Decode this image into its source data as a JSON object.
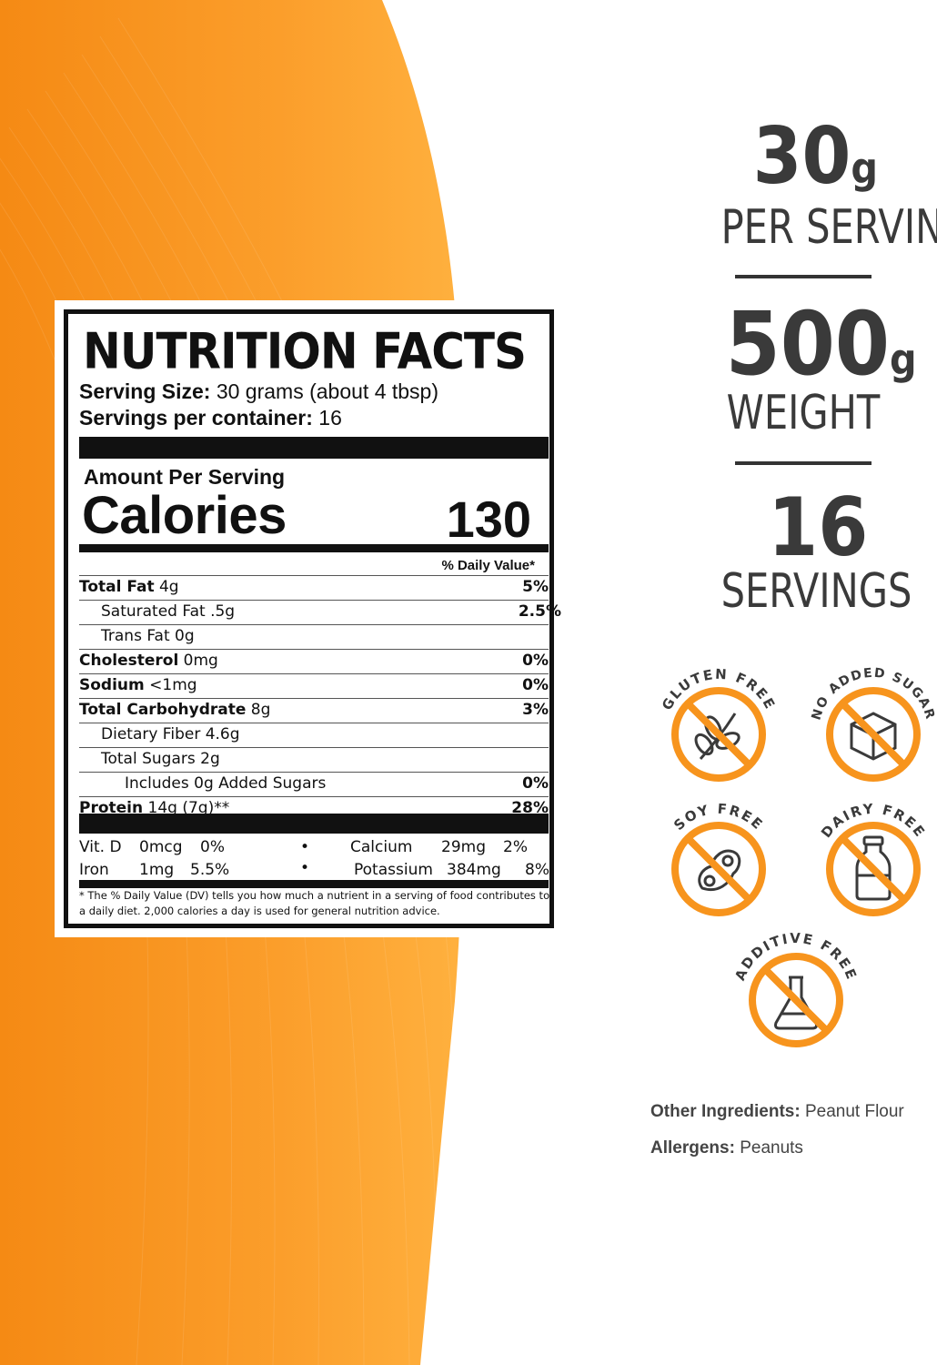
{
  "colors": {
    "orange": "#f7941d",
    "orange_light": "#ffb347",
    "dark": "#3a3a3a"
  },
  "label": {
    "title": "NUTRITION FACTS",
    "serving_size_label": "Serving Size:",
    "serving_size_value": " 30 grams (about 4 tbsp)",
    "servings_label": "Servings per container:",
    "servings_value": " 16",
    "amount_per_serving": "Amount Per Serving",
    "calories_label": "Calories",
    "calories_value": "130",
    "dv_header": "% Daily Value*",
    "rows": [
      {
        "name": "Total Fat",
        "amount": " 4g",
        "pct": "5%"
      },
      {
        "name": "Saturated Fat .5g",
        "pct": "2.5%"
      },
      {
        "name": "Trans Fat 0g",
        "pct": ""
      },
      {
        "name": "Cholesterol",
        "amount": " 0mg",
        "pct": "0%"
      },
      {
        "name": "Sodium",
        "amount": " <1mg",
        "pct": "0%"
      },
      {
        "name": "Total Carbohydrate",
        "amount": " 8g",
        "pct": "3%"
      },
      {
        "name": "Dietary Fiber  4.6g",
        "pct": ""
      },
      {
        "name": "Total Sugars  2g",
        "pct": ""
      },
      {
        "name": "Includes 0g Added Sugars",
        "pct": "0%"
      },
      {
        "name": "Protein",
        "amount": " 14g (7g)**",
        "pct": "28%"
      }
    ],
    "vitamins": {
      "vitd_name": "Vit. D",
      "vitd_amt": "0mcg",
      "vitd_pct": "0%",
      "calcium_name": "Calcium",
      "calcium_amt": "29mg",
      "calcium_pct": "2%",
      "iron_name": "Iron",
      "iron_amt": "1mg",
      "iron_pct": "5.5%",
      "potassium_name": "Potassium",
      "potassium_amt": "384mg",
      "potassium_pct": "8%",
      "bullet": "•"
    },
    "footnote": "* The % Daily Value (DV) tells you how much a nutrient in a serving of food contributes to a daily diet. 2,000 calories a day is used for general nutrition advice."
  },
  "stats": [
    {
      "big": "30",
      "unit": "g",
      "label": "PER SERVING"
    },
    {
      "big": "500",
      "unit": "g",
      "label": "WEIGHT"
    },
    {
      "big": "16",
      "unit": "",
      "label": "SERVINGS"
    }
  ],
  "badges": [
    {
      "text": "GLUTEN FREE",
      "icon": "wheat-icon"
    },
    {
      "text": "NO ADDED SUGAR",
      "icon": "sugar-cube-icon"
    },
    {
      "text": "SOY FREE",
      "icon": "soybean-icon"
    },
    {
      "text": "DAIRY FREE",
      "icon": "milk-bottle-icon"
    },
    {
      "text": "ADDITIVE FREE",
      "icon": "flask-icon"
    }
  ],
  "ingredients": {
    "other_label": "Other Ingredients:",
    "other_value": " Peanut Flour",
    "allergens_label": "Allergens:",
    "allergens_value": " Peanuts"
  }
}
